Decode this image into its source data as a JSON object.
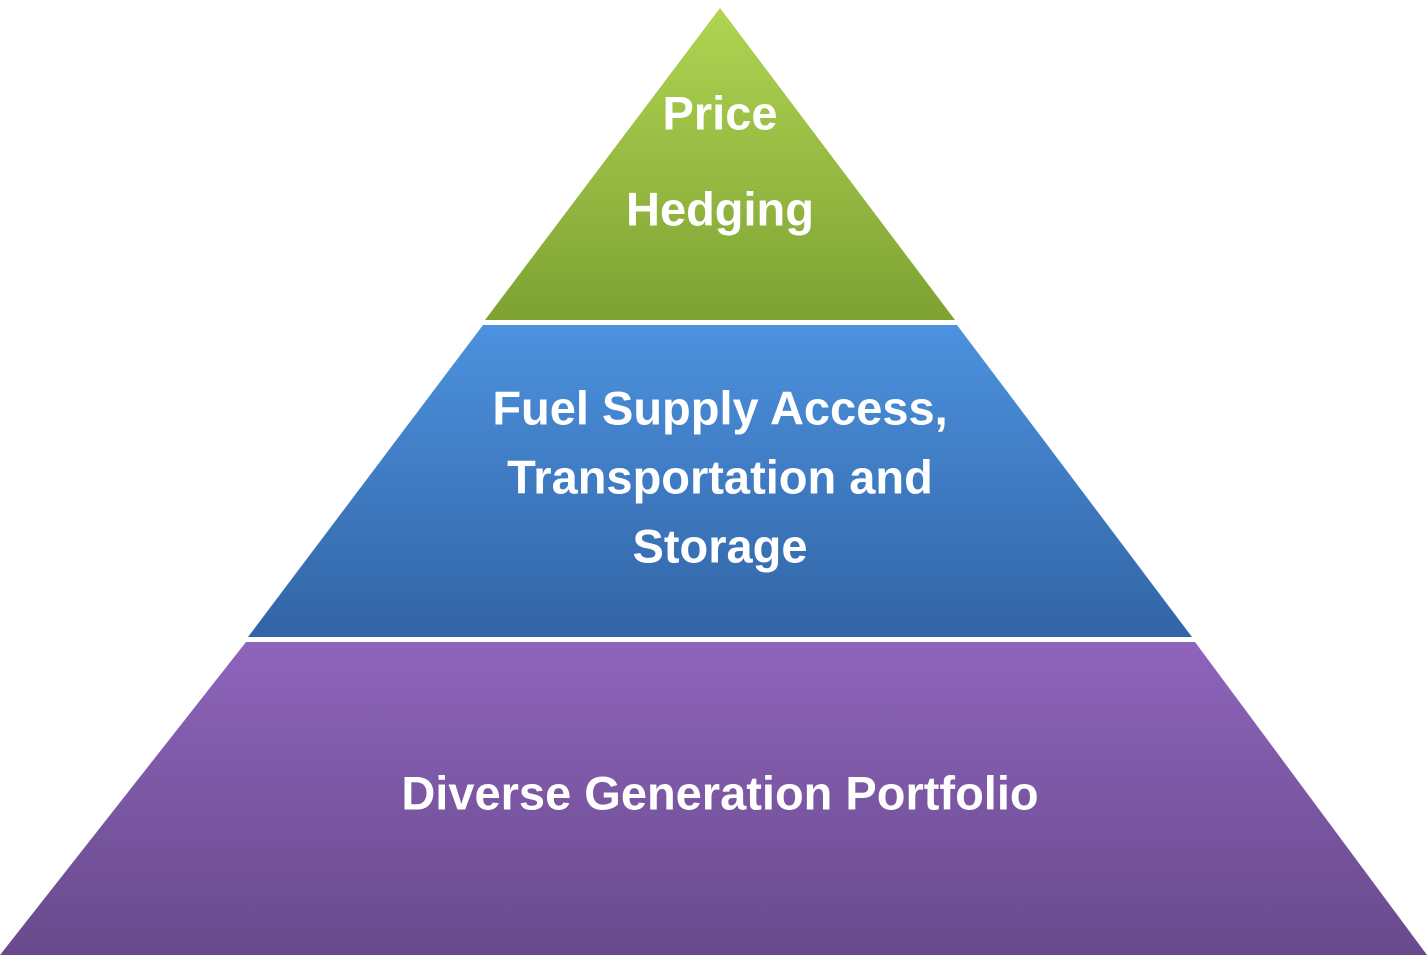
{
  "layers": [
    {
      "lines": [
        "Price",
        "Hedging"
      ]
    },
    {
      "lines": [
        "Fuel Supply Access,",
        "Transportation and",
        "Storage"
      ]
    },
    {
      "lines": [
        "Diverse Generation Portfolio"
      ]
    }
  ]
}
